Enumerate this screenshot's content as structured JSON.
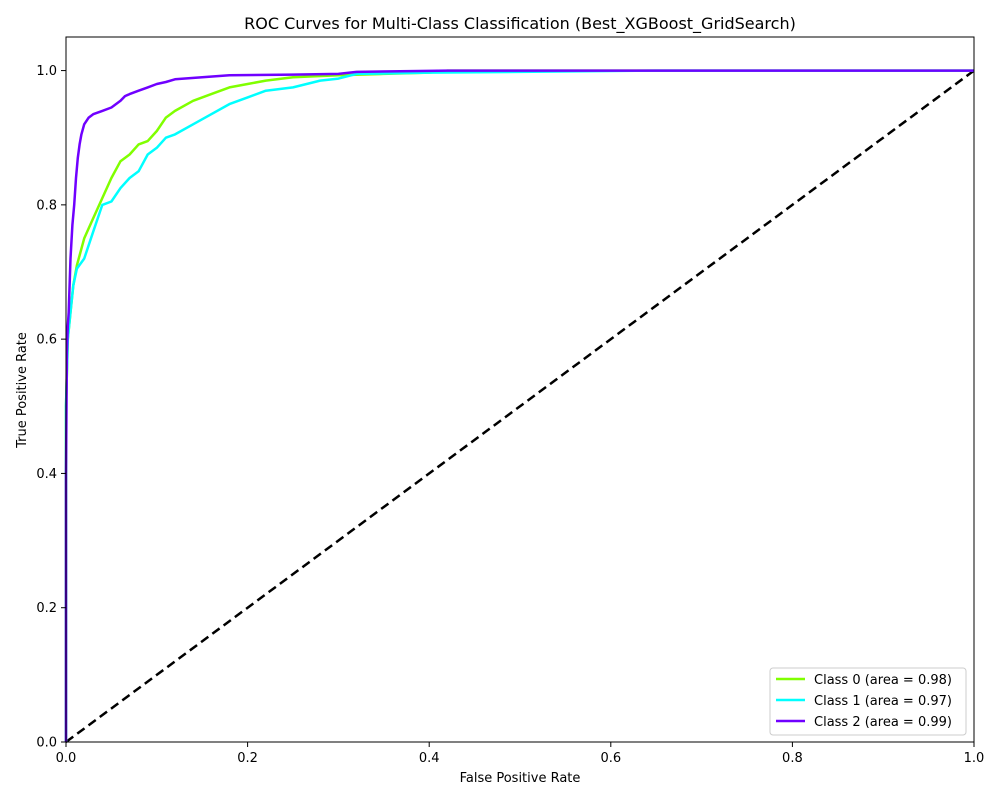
{
  "chart_data": {
    "type": "line",
    "title": "ROC Curves for Multi-Class Classification (Best_XGBoost_GridSearch)",
    "xlabel": "False Positive Rate",
    "ylabel": "True Positive Rate",
    "xlim": [
      0.0,
      1.0
    ],
    "ylim": [
      0.0,
      1.05
    ],
    "xticks": [
      0.0,
      0.2,
      0.4,
      0.6,
      0.8,
      1.0
    ],
    "yticks": [
      0.0,
      0.2,
      0.4,
      0.6,
      0.8,
      1.0
    ],
    "xtick_labels": [
      "0.0",
      "0.2",
      "0.4",
      "0.6",
      "0.8",
      "1.0"
    ],
    "ytick_labels": [
      "0.0",
      "0.2",
      "0.4",
      "0.6",
      "0.8",
      "1.0"
    ],
    "grid": false,
    "legend_position": "lower-right",
    "series": [
      {
        "name": "Class 0 (area = 0.98)",
        "color": "#80ff00",
        "x": [
          0.0,
          0.0,
          0.002,
          0.005,
          0.008,
          0.012,
          0.02,
          0.03,
          0.04,
          0.05,
          0.06,
          0.07,
          0.08,
          0.09,
          0.1,
          0.11,
          0.12,
          0.14,
          0.16,
          0.18,
          0.2,
          0.22,
          0.25,
          0.3,
          0.35,
          0.4,
          0.42,
          0.6,
          1.0
        ],
        "y": [
          0.0,
          0.5,
          0.6,
          0.64,
          0.68,
          0.71,
          0.75,
          0.78,
          0.81,
          0.84,
          0.865,
          0.875,
          0.89,
          0.895,
          0.91,
          0.93,
          0.94,
          0.955,
          0.965,
          0.975,
          0.98,
          0.985,
          0.99,
          0.993,
          0.995,
          0.997,
          1.0,
          1.0,
          1.0
        ]
      },
      {
        "name": "Class 1 (area = 0.97)",
        "color": "#00ffff",
        "x": [
          0.0,
          0.0,
          0.002,
          0.005,
          0.008,
          0.012,
          0.02,
          0.03,
          0.04,
          0.05,
          0.06,
          0.07,
          0.08,
          0.09,
          0.1,
          0.11,
          0.12,
          0.14,
          0.16,
          0.18,
          0.2,
          0.22,
          0.25,
          0.28,
          0.3,
          0.32,
          0.4,
          0.5,
          0.65,
          1.0
        ],
        "y": [
          0.0,
          0.5,
          0.6,
          0.64,
          0.68,
          0.705,
          0.72,
          0.76,
          0.8,
          0.805,
          0.825,
          0.84,
          0.85,
          0.875,
          0.885,
          0.9,
          0.905,
          0.92,
          0.935,
          0.95,
          0.96,
          0.97,
          0.975,
          0.985,
          0.988,
          0.995,
          0.997,
          0.998,
          1.0,
          1.0
        ]
      },
      {
        "name": "Class 2 (area = 0.99)",
        "color": "#7000ff",
        "x": [
          0.0,
          0.0,
          0.001,
          0.002,
          0.003,
          0.005,
          0.007,
          0.009,
          0.011,
          0.013,
          0.015,
          0.017,
          0.02,
          0.025,
          0.03,
          0.04,
          0.05,
          0.06,
          0.065,
          0.07,
          0.08,
          0.09,
          0.1,
          0.11,
          0.12,
          0.15,
          0.18,
          0.25,
          0.3,
          0.32,
          0.42,
          1.0
        ],
        "y": [
          0.0,
          0.4,
          0.58,
          0.62,
          0.64,
          0.72,
          0.77,
          0.8,
          0.84,
          0.87,
          0.89,
          0.905,
          0.92,
          0.93,
          0.935,
          0.94,
          0.945,
          0.955,
          0.962,
          0.965,
          0.97,
          0.975,
          0.98,
          0.983,
          0.987,
          0.99,
          0.993,
          0.994,
          0.995,
          0.998,
          1.0,
          1.0
        ]
      }
    ],
    "reference_line": {
      "x": [
        0.0,
        1.0
      ],
      "y": [
        0.0,
        1.0
      ],
      "color": "#000000",
      "style": "dashed"
    }
  }
}
